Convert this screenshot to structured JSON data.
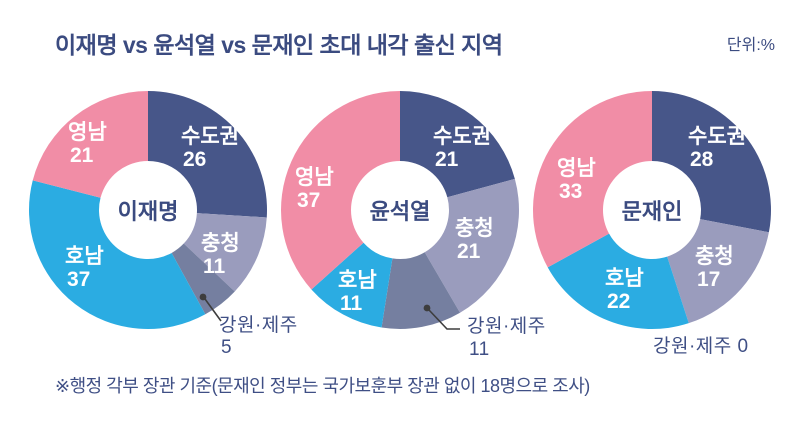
{
  "header": {
    "title": "이재명 vs 윤석열 vs 문재인 초대 내각 출신 지역",
    "unit": "단위:%"
  },
  "footnote": "※행정 각부 장관 기준(문재인 정부는 국가보훈부 장관 없이 18명으로 조사)",
  "colors": {
    "title_text": "#3b4b80",
    "callout_text": "#3f4f85",
    "slice_label_text": "#ffffff",
    "callout_line": "#3d3d3d",
    "slices": {
      "수도권": "#475689",
      "충청": "#9a9cbd",
      "강원·제주": "#757fa0",
      "호남": "#2bace2",
      "영남": "#f18da6"
    }
  },
  "chart_data": [
    {
      "type": "pie",
      "title": "이재명",
      "categories": [
        "수도권",
        "충청",
        "강원·제주",
        "호남",
        "영남"
      ],
      "values": [
        26,
        11,
        5,
        37,
        21
      ],
      "donut": true,
      "start_angle": "top",
      "direction": "clockwise",
      "unit": "%"
    },
    {
      "type": "pie",
      "title": "윤석열",
      "categories": [
        "수도권",
        "충청",
        "강원·제주",
        "호남",
        "영남"
      ],
      "values": [
        21,
        21,
        11,
        11,
        37
      ],
      "donut": true,
      "start_angle": "top",
      "direction": "clockwise",
      "unit": "%"
    },
    {
      "type": "pie",
      "title": "문재인",
      "categories": [
        "수도권",
        "충청",
        "강원·제주",
        "호남",
        "영남"
      ],
      "values": [
        28,
        17,
        0,
        22,
        33
      ],
      "donut": true,
      "start_angle": "top",
      "direction": "clockwise",
      "unit": "%"
    }
  ]
}
